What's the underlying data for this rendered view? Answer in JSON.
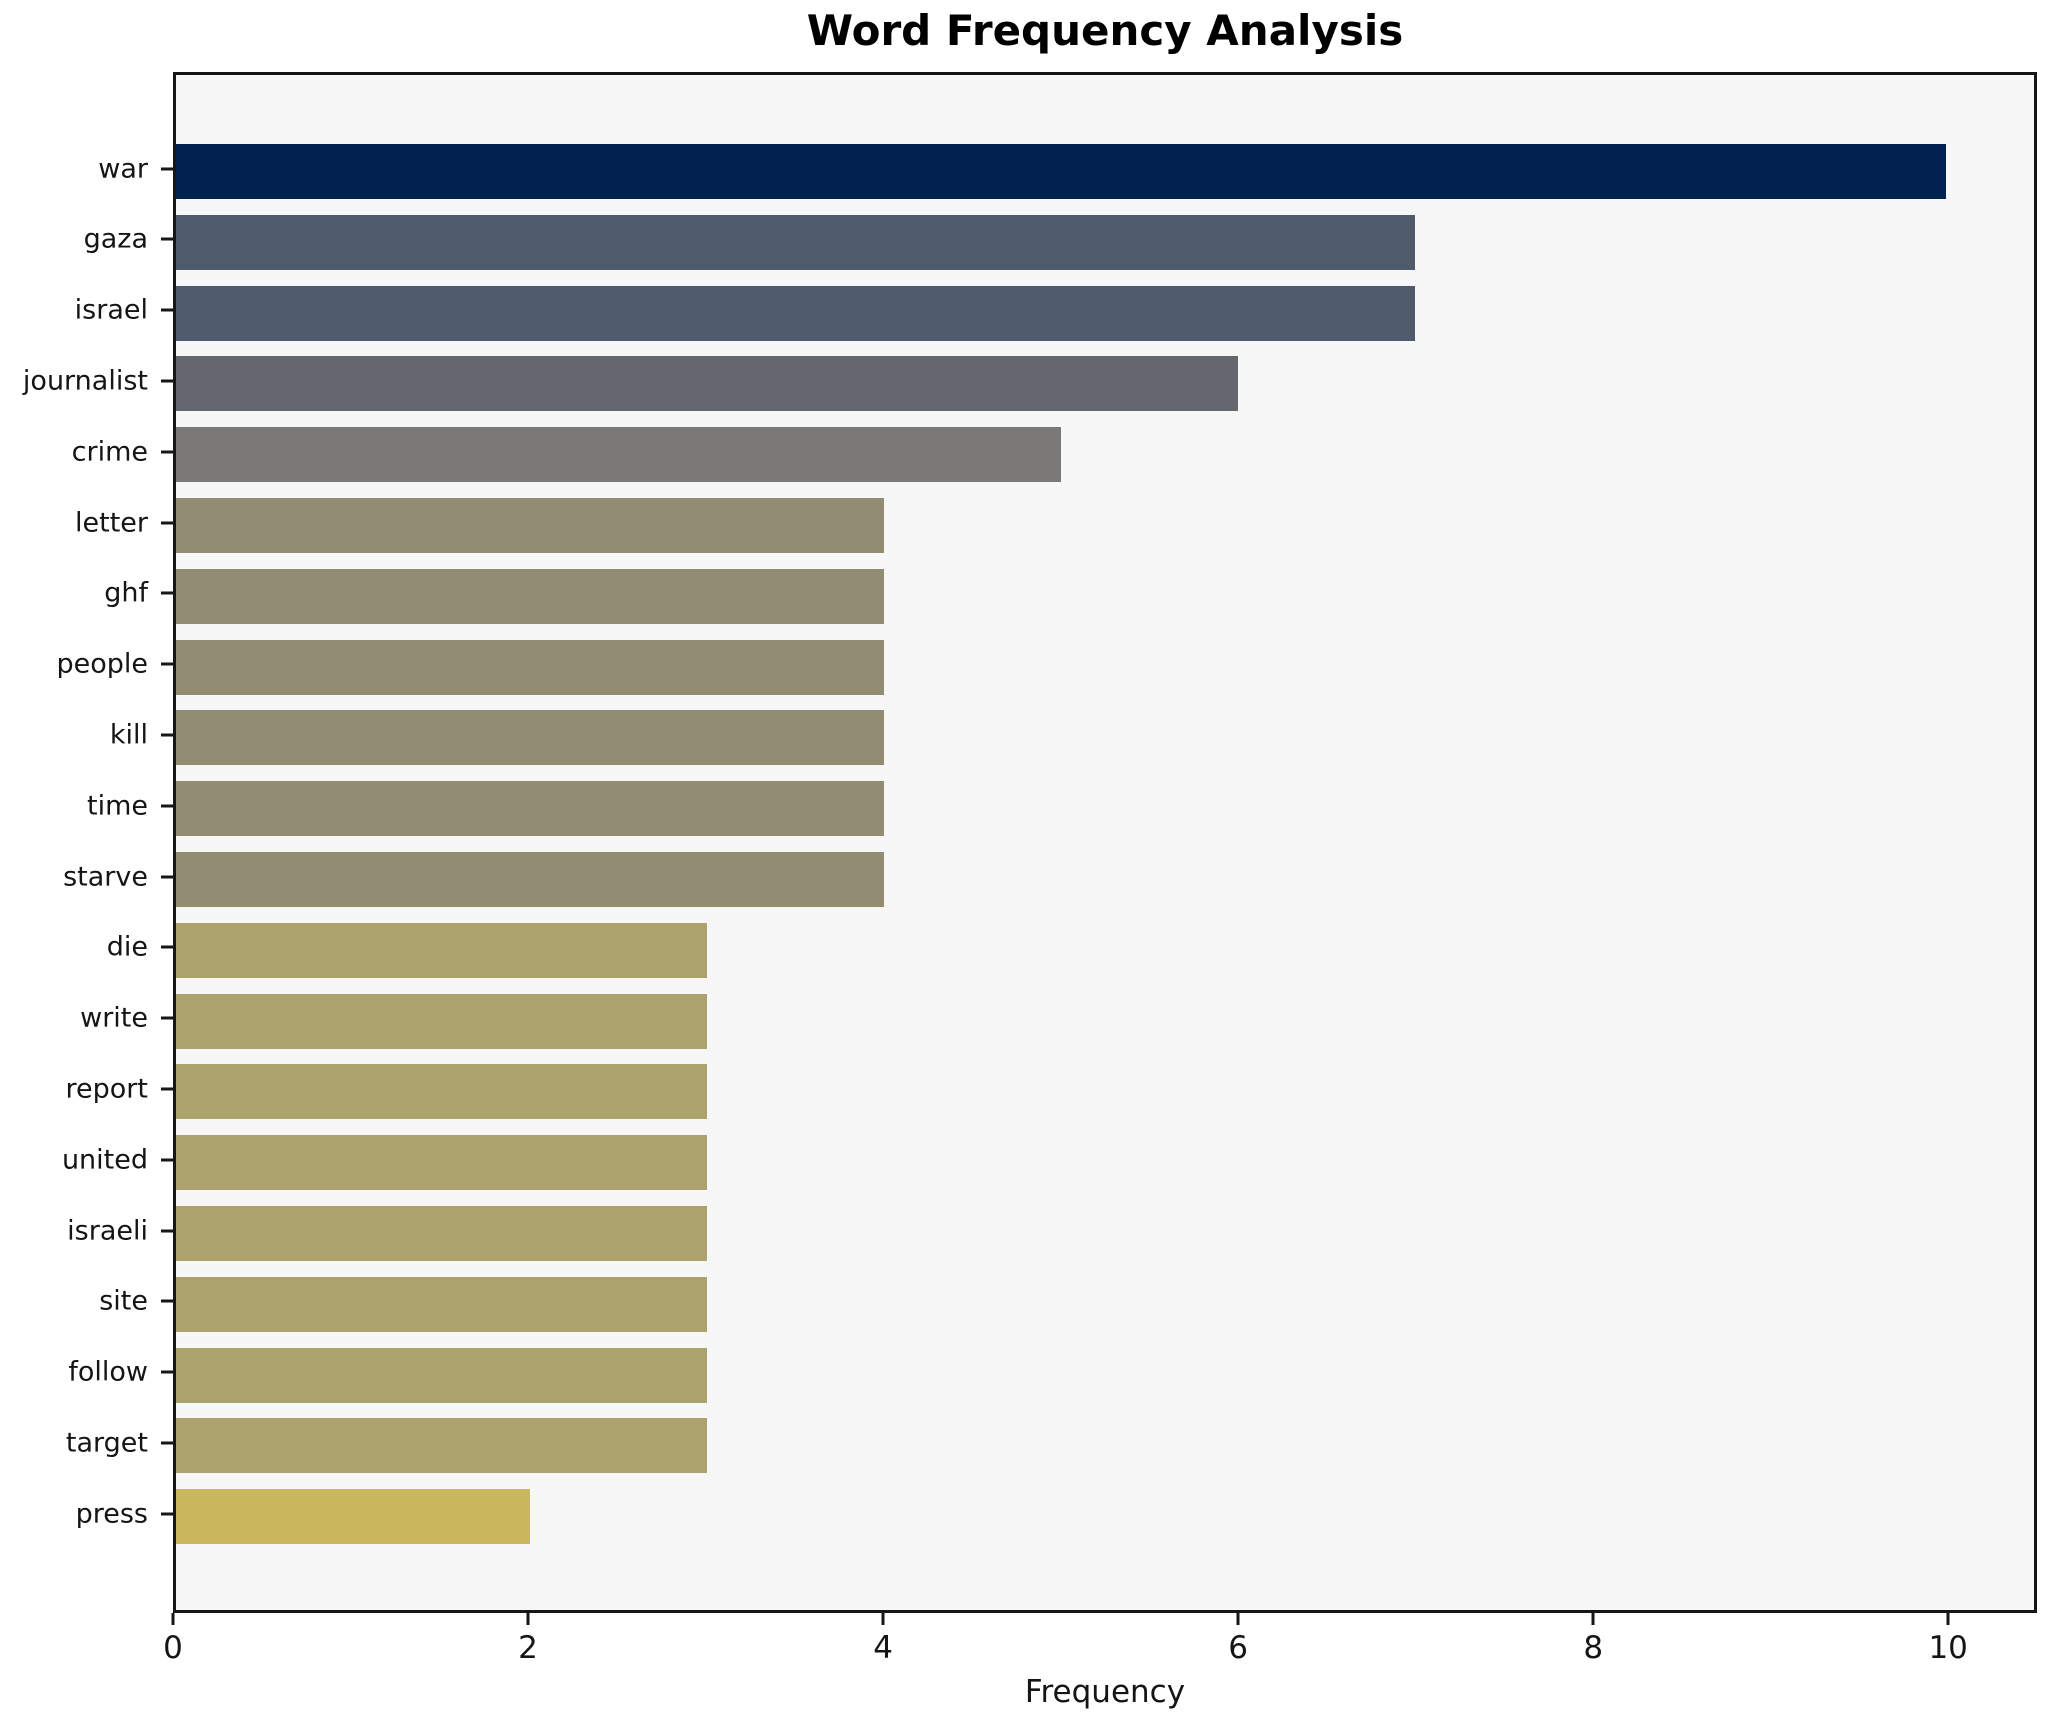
{
  "title": "Word Frequency Analysis",
  "chart_data": {
    "type": "bar",
    "orientation": "horizontal",
    "title": "Word Frequency Analysis",
    "xlabel": "Frequency",
    "ylabel": "",
    "categories": [
      "war",
      "gaza",
      "israel",
      "journalist",
      "crime",
      "letter",
      "ghf",
      "people",
      "kill",
      "time",
      "starve",
      "die",
      "write",
      "report",
      "united",
      "israeli",
      "site",
      "follow",
      "target",
      "press"
    ],
    "values": [
      10,
      7,
      7,
      6,
      5,
      4,
      4,
      4,
      4,
      4,
      4,
      3,
      3,
      3,
      3,
      3,
      3,
      3,
      3,
      2
    ],
    "bar_colors": [
      "#01224e",
      "#4f5a6c",
      "#4f5a6c",
      "#65676f",
      "#7a7977",
      "#928c73",
      "#928c73",
      "#928c73",
      "#928c73",
      "#928c73",
      "#928c73",
      "#aca26b",
      "#aca26b",
      "#aca26b",
      "#aca26b",
      "#aca26b",
      "#aca26b",
      "#aca26b",
      "#aca26b",
      "#c9b65d"
    ],
    "xticks": [
      0,
      2,
      4,
      6,
      8,
      10
    ],
    "xlim": [
      0,
      10.5
    ],
    "grid": false,
    "legend": null,
    "plot_background": "#f7f7f7",
    "figure_background": "#ffffff",
    "spine_color": "#161616",
    "text_color": "#151515"
  }
}
